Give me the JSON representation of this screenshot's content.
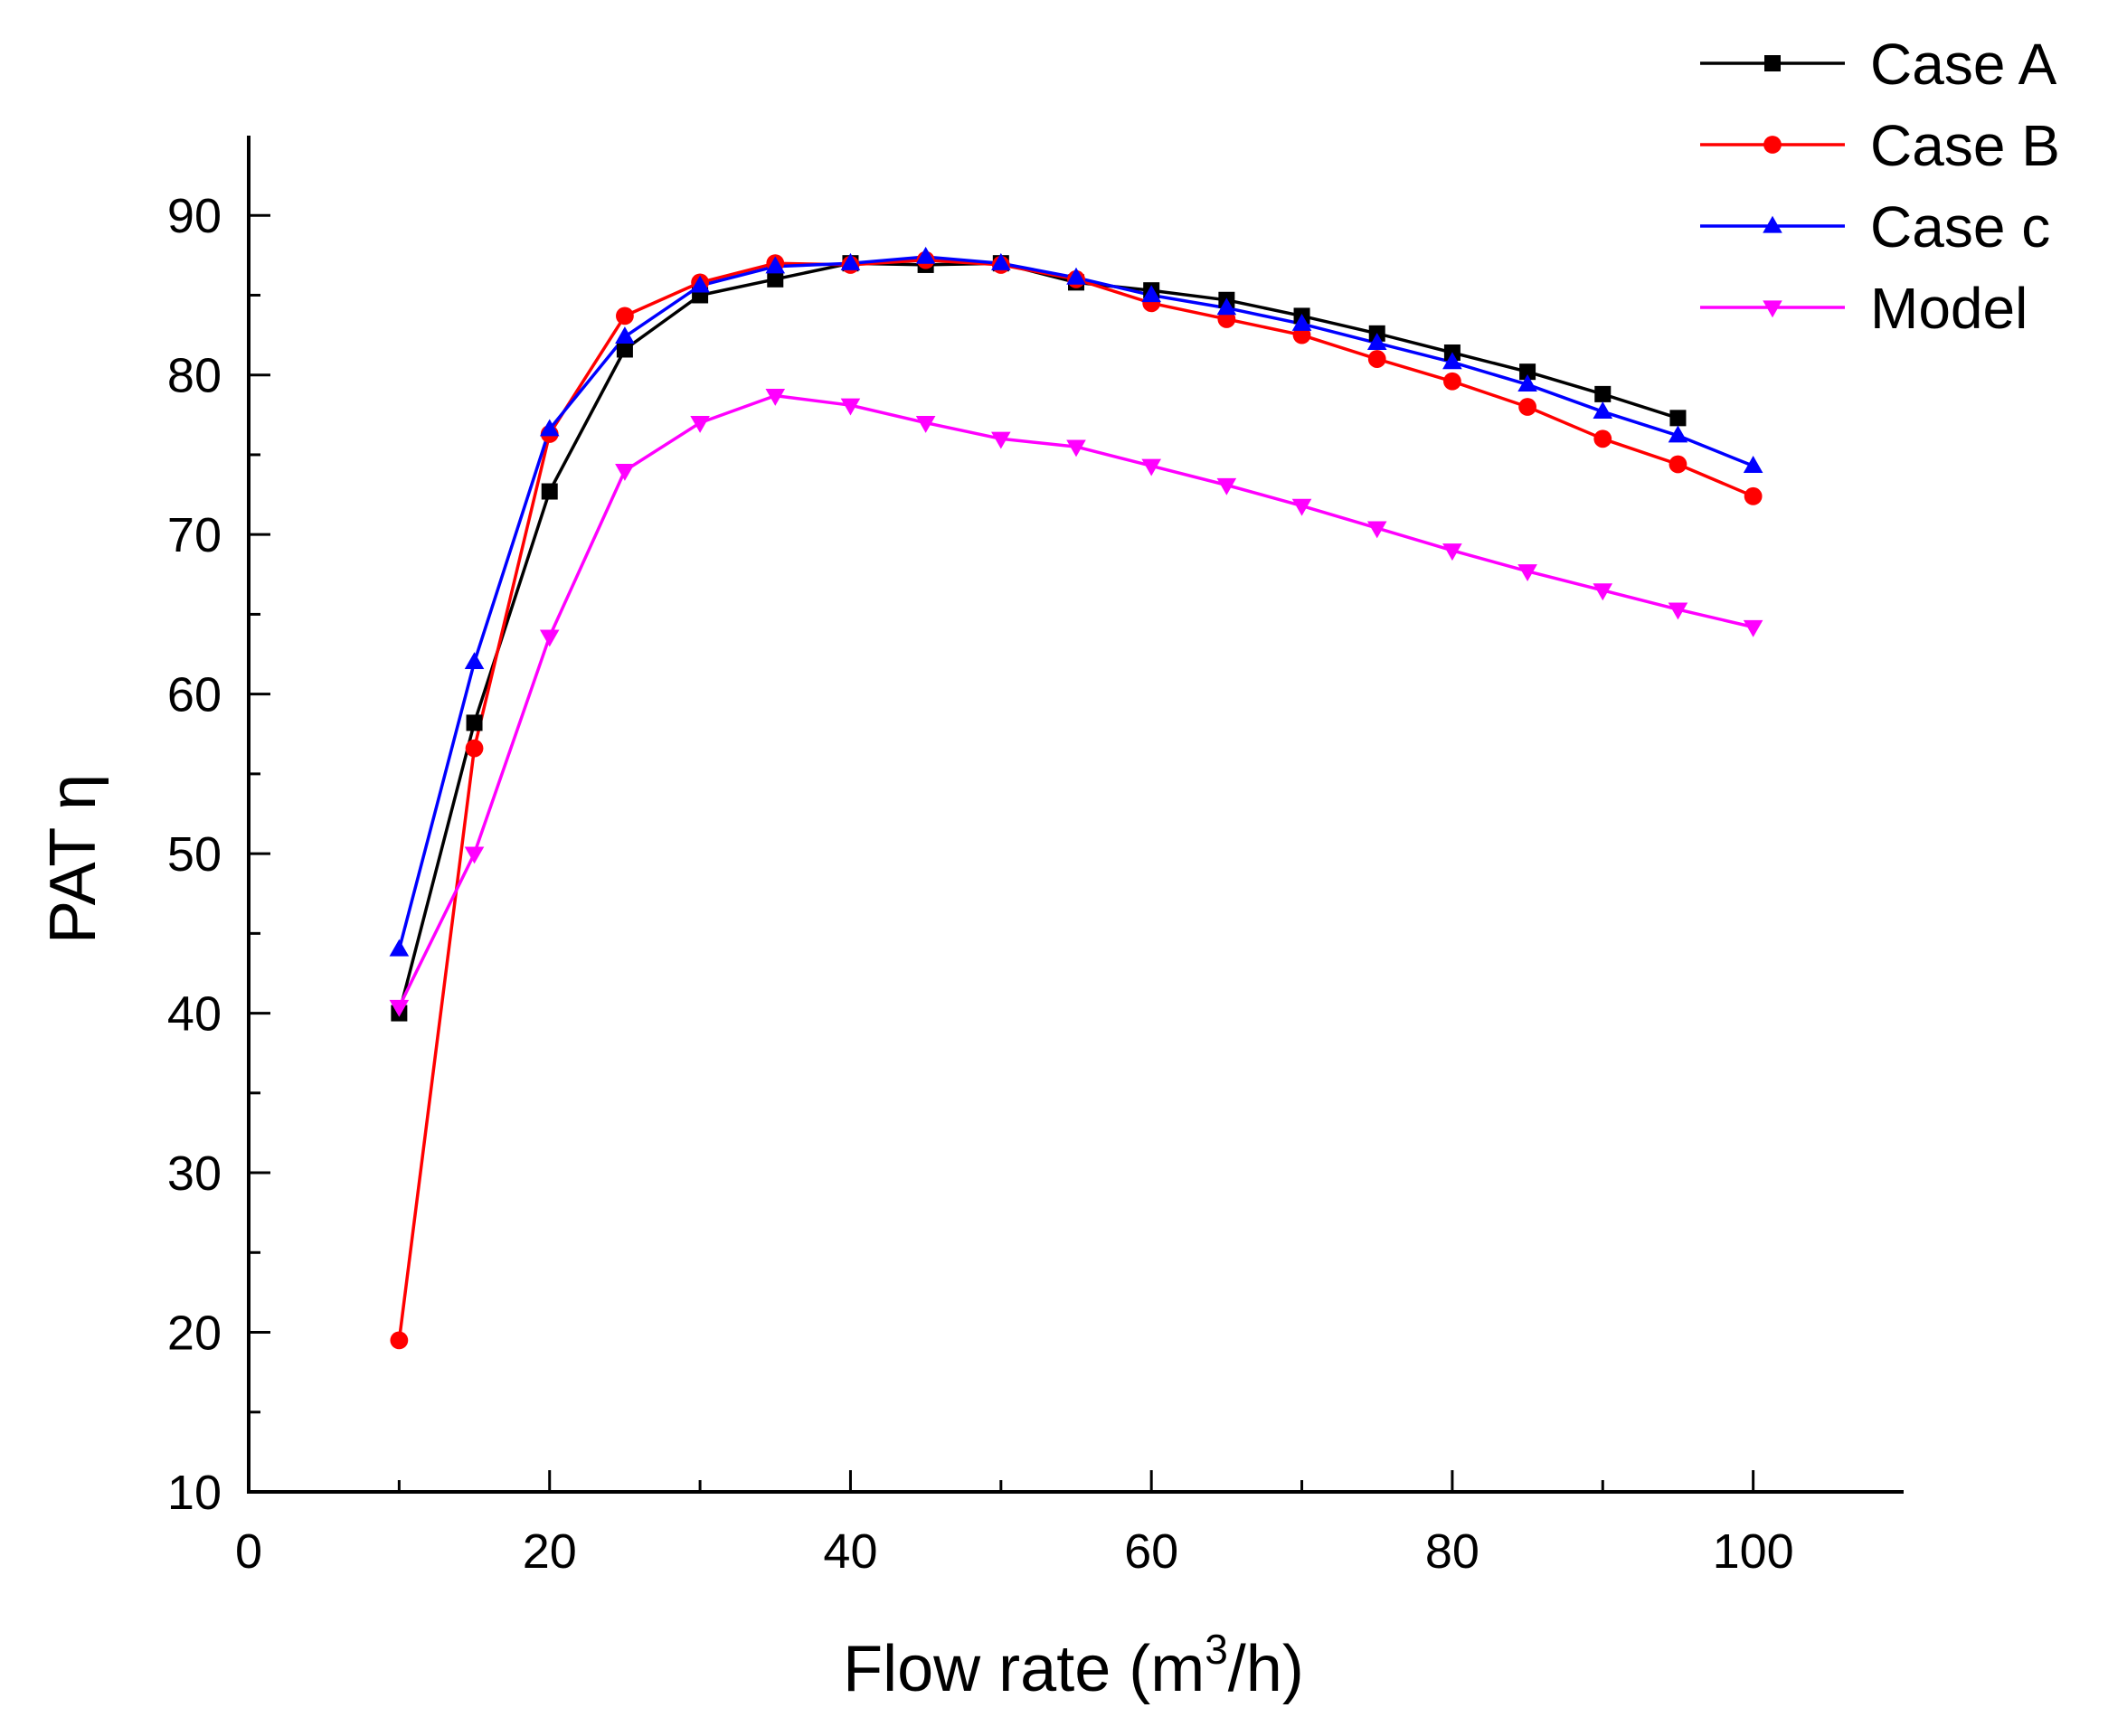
{
  "chart_data": {
    "type": "line",
    "title": "",
    "xlabel": "Flow rate (m",
    "xlabel_superscript": "3",
    "xlabel_suffix": "/h)",
    "ylabel": "PAT η",
    "xlim": [
      0,
      110
    ],
    "ylim": [
      10,
      95
    ],
    "xticks": [
      0,
      20,
      40,
      60,
      80,
      100
    ],
    "yticks": [
      10,
      20,
      30,
      40,
      50,
      60,
      70,
      80,
      90
    ],
    "xtick_labels": [
      "0",
      "20",
      "40",
      "60",
      "80",
      "100"
    ],
    "ytick_labels": [
      "10",
      "20",
      "30",
      "40",
      "50",
      "60",
      "70",
      "80",
      "90"
    ],
    "grid": false,
    "legend_position": "top-right",
    "series": [
      {
        "name": "Case A",
        "color": "#000000",
        "marker": "square",
        "x": [
          10,
          15,
          20,
          25,
          30,
          35,
          40,
          45,
          50,
          55,
          60,
          65,
          70,
          75,
          80,
          85,
          90,
          95
        ],
        "values": [
          40.0,
          58.2,
          72.7,
          81.6,
          85.0,
          86.0,
          87.0,
          86.9,
          87.0,
          85.8,
          85.3,
          84.7,
          83.7,
          82.6,
          81.4,
          80.2,
          78.8,
          77.3
        ]
      },
      {
        "name": "Case B",
        "color": "#ff0000",
        "marker": "circle",
        "x": [
          10,
          15,
          20,
          25,
          30,
          35,
          40,
          45,
          50,
          55,
          60,
          65,
          70,
          75,
          80,
          85,
          90,
          95,
          100
        ],
        "values": [
          19.5,
          56.6,
          76.3,
          83.7,
          85.8,
          87.0,
          86.9,
          87.2,
          86.9,
          86.0,
          84.5,
          83.5,
          82.5,
          81.0,
          79.6,
          78.0,
          76.0,
          74.4,
          72.4
        ]
      },
      {
        "name": "Case c",
        "color": "#0000ff",
        "marker": "triangle-up",
        "x": [
          10,
          15,
          20,
          25,
          30,
          35,
          40,
          45,
          50,
          55,
          60,
          65,
          70,
          75,
          80,
          85,
          90,
          95,
          100
        ],
        "values": [
          44.0,
          62.0,
          76.6,
          82.4,
          85.6,
          86.8,
          87.0,
          87.4,
          87.0,
          86.1,
          85.0,
          84.2,
          83.2,
          82.0,
          80.8,
          79.4,
          77.7,
          76.2,
          74.3
        ]
      },
      {
        "name": "Model",
        "color": "#ff00ff",
        "marker": "triangle-down",
        "x": [
          10,
          15,
          20,
          25,
          30,
          35,
          40,
          45,
          50,
          55,
          60,
          65,
          70,
          75,
          80,
          85,
          90,
          95,
          100
        ],
        "values": [
          40.4,
          50.0,
          63.6,
          74.0,
          77.0,
          78.7,
          78.1,
          77.0,
          76.0,
          75.5,
          74.3,
          73.1,
          71.8,
          70.4,
          69.0,
          67.7,
          66.5,
          65.3,
          64.2
        ]
      }
    ]
  }
}
